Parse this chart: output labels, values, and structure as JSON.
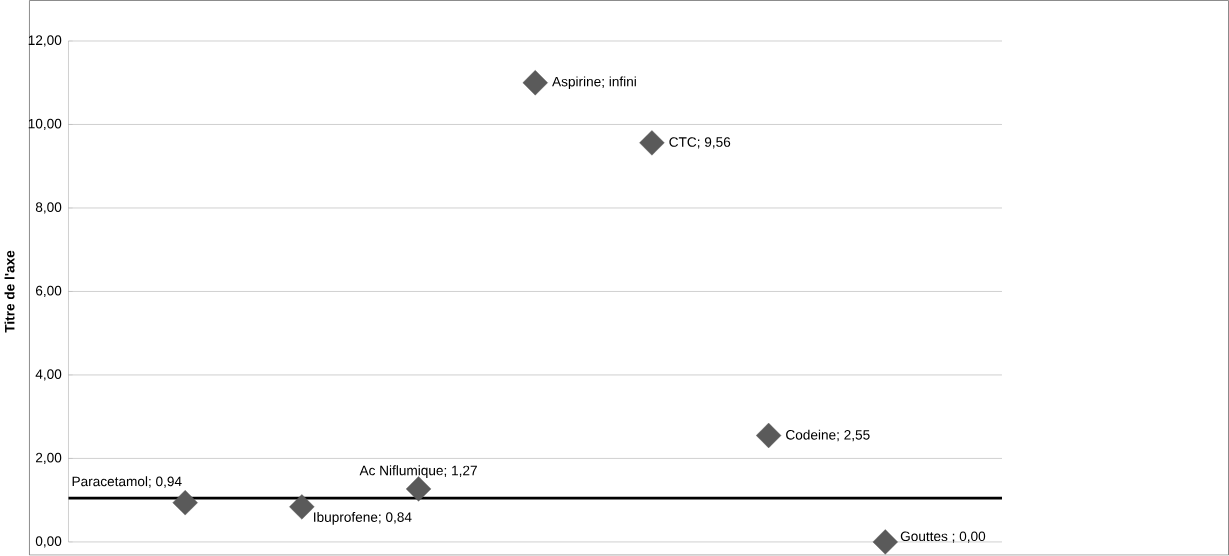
{
  "chart_data": {
    "type": "scatter",
    "ylabel": "Titre de l'axe",
    "categories": [
      null,
      null,
      null,
      null,
      null,
      null,
      null
    ],
    "series": [
      {
        "color": "#5a5a5a",
        "values": [
          0.94,
          0.84,
          1.27,
          11,
          9.56,
          2.55,
          0.0
        ],
        "value_labels": [
          "Paracetamol; 0,94",
          "Ibuprofene; 0,84",
          "Ac Niflumique; 1,27",
          "Aspirine; infini",
          "CTC; 9,56",
          "Codeine; 2,55",
          "Gouttes ; 0,00"
        ]
      }
    ],
    "ylim": [
      0,
      12
    ],
    "yticks": [
      {
        "value": 0,
        "label": "0,00"
      },
      {
        "value": 2,
        "label": "2,00"
      },
      {
        "value": 4,
        "label": "4,00"
      },
      {
        "value": 6,
        "label": "6,00"
      },
      {
        "value": 8,
        "label": "8,00"
      },
      {
        "value": 10,
        "label": "10,00"
      },
      {
        "value": 12,
        "label": "12,00"
      }
    ],
    "ref_lines": [
      {
        "axis": "y",
        "value": 1.05,
        "color": "#000000"
      }
    ],
    "grid": "y",
    "marker": "diamond",
    "tick_labels": "y"
  }
}
